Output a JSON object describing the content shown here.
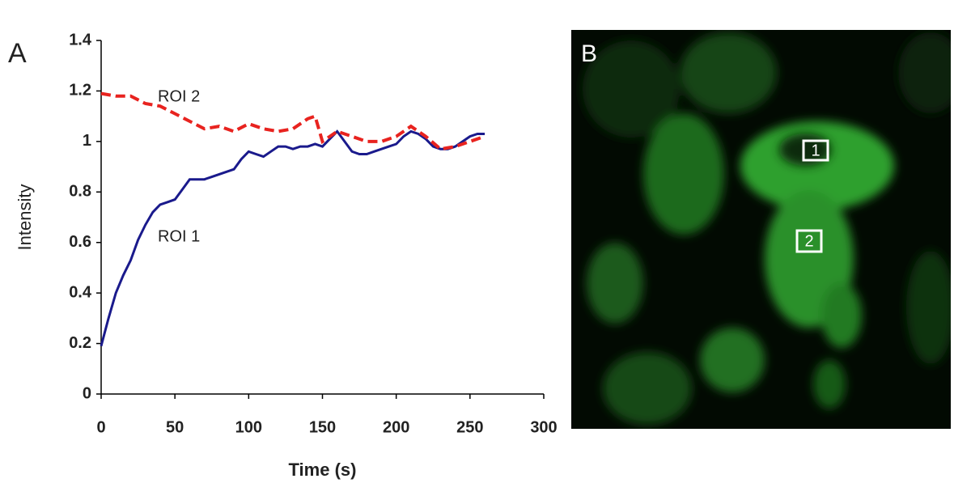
{
  "chart_data": {
    "type": "line",
    "x_label": "Time (s)",
    "y_label": "Intensity",
    "xlim": [
      0,
      300
    ],
    "xticks": [
      0,
      50,
      100,
      150,
      200,
      250,
      300
    ],
    "ylim": [
      0,
      1.4
    ],
    "yticks": [
      0,
      0.2,
      0.4,
      0.6,
      0.8,
      1,
      1.2,
      1.4
    ],
    "grid": false,
    "series": [
      {
        "name": "ROI 1",
        "color": "#1a1a8c",
        "dash": false,
        "x": [
          0,
          5,
          10,
          15,
          20,
          25,
          30,
          35,
          40,
          45,
          50,
          55,
          60,
          65,
          70,
          75,
          80,
          85,
          90,
          95,
          100,
          105,
          110,
          115,
          120,
          125,
          130,
          135,
          140,
          145,
          150,
          155,
          160,
          165,
          170,
          175,
          180,
          185,
          190,
          195,
          200,
          205,
          210,
          215,
          220,
          225,
          230,
          235,
          240,
          245,
          250,
          255,
          260
        ],
        "values": [
          0.19,
          0.3,
          0.4,
          0.47,
          0.53,
          0.61,
          0.67,
          0.72,
          0.75,
          0.76,
          0.77,
          0.81,
          0.85,
          0.85,
          0.85,
          0.86,
          0.87,
          0.88,
          0.89,
          0.93,
          0.96,
          0.95,
          0.94,
          0.96,
          0.98,
          0.98,
          0.97,
          0.98,
          0.98,
          0.99,
          0.98,
          1.01,
          1.04,
          1.0,
          0.96,
          0.95,
          0.95,
          0.96,
          0.97,
          0.98,
          0.99,
          1.02,
          1.04,
          1.03,
          1.01,
          0.98,
          0.97,
          0.97,
          0.98,
          1.0,
          1.02,
          1.03,
          1.03
        ]
      },
      {
        "name": "ROI 2",
        "color": "#e8231f",
        "dash": true,
        "x": [
          0,
          10,
          20,
          30,
          40,
          50,
          60,
          70,
          80,
          90,
          100,
          110,
          120,
          130,
          140,
          145,
          150,
          160,
          170,
          180,
          190,
          200,
          210,
          220,
          230,
          240,
          250,
          260
        ],
        "values": [
          1.19,
          1.18,
          1.18,
          1.15,
          1.14,
          1.11,
          1.08,
          1.05,
          1.06,
          1.04,
          1.07,
          1.05,
          1.04,
          1.05,
          1.09,
          1.1,
          1.0,
          1.04,
          1.02,
          1.0,
          1.0,
          1.02,
          1.06,
          1.02,
          0.97,
          0.98,
          1.0,
          1.02
        ]
      }
    ]
  },
  "panels": {
    "a_label": "A",
    "b_label": "B",
    "roi_markers": [
      "1",
      "2"
    ]
  }
}
